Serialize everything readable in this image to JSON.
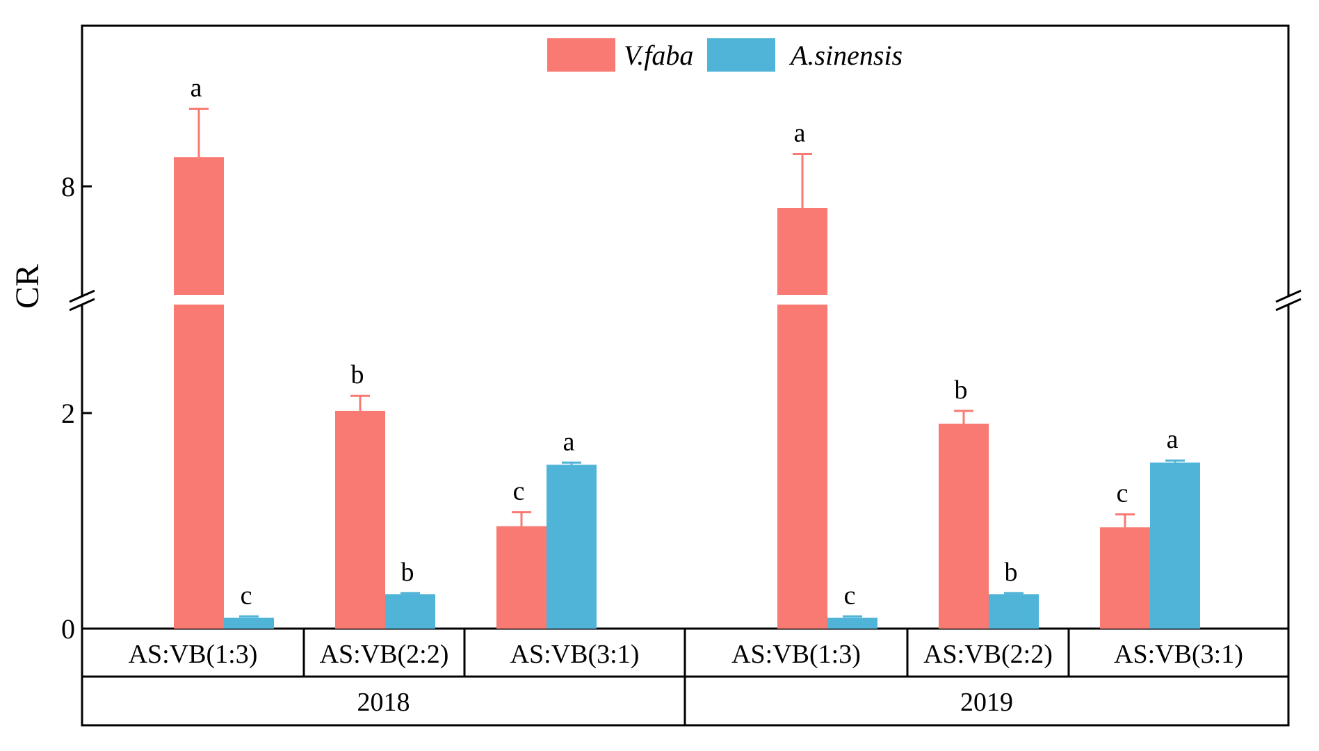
{
  "chart_data": {
    "type": "bar",
    "ylabel": "CR",
    "y_ticks": [
      {
        "value": 0,
        "label": "0"
      },
      {
        "value": 2,
        "label": "2"
      },
      {
        "value": 8,
        "label": "8"
      }
    ],
    "y_axis_break": {
      "lower_segment": [
        0,
        3.0
      ],
      "upper_segment": [
        5.8,
        9.5
      ]
    },
    "legend": {
      "position": "top-center"
    },
    "series": [
      {
        "name": "V.faba",
        "color": "#f87a72"
      },
      {
        "name": "A.sinensis",
        "color": "#4fb4d8"
      }
    ],
    "groups": [
      {
        "year": "2018",
        "categories": [
          {
            "label": "AS:VB(1:3)",
            "values": [
              8.27,
              0.1
            ],
            "errors": [
              0.45,
              0.0
            ],
            "letters": [
              "a",
              "c"
            ]
          },
          {
            "label": "AS:VB(2:2)",
            "values": [
              2.02,
              0.32
            ],
            "errors": [
              0.14,
              0.01
            ],
            "letters": [
              "b",
              "b"
            ]
          },
          {
            "label": "AS:VB(3:1)",
            "values": [
              0.95,
              1.52
            ],
            "errors": [
              0.13,
              0.02
            ],
            "letters": [
              "c",
              "a"
            ]
          }
        ]
      },
      {
        "year": "2019",
        "categories": [
          {
            "label": "AS:VB(1:3)",
            "values": [
              7.8,
              0.1
            ],
            "errors": [
              0.5,
              0.0
            ],
            "letters": [
              "a",
              "c"
            ]
          },
          {
            "label": "AS:VB(2:2)",
            "values": [
              1.9,
              0.32
            ],
            "errors": [
              0.12,
              0.01
            ],
            "letters": [
              "b",
              "b"
            ]
          },
          {
            "label": "AS:VB(3:1)",
            "values": [
              0.94,
              1.54
            ],
            "errors": [
              0.12,
              0.02
            ],
            "letters": [
              "c",
              "a"
            ]
          }
        ]
      }
    ]
  }
}
